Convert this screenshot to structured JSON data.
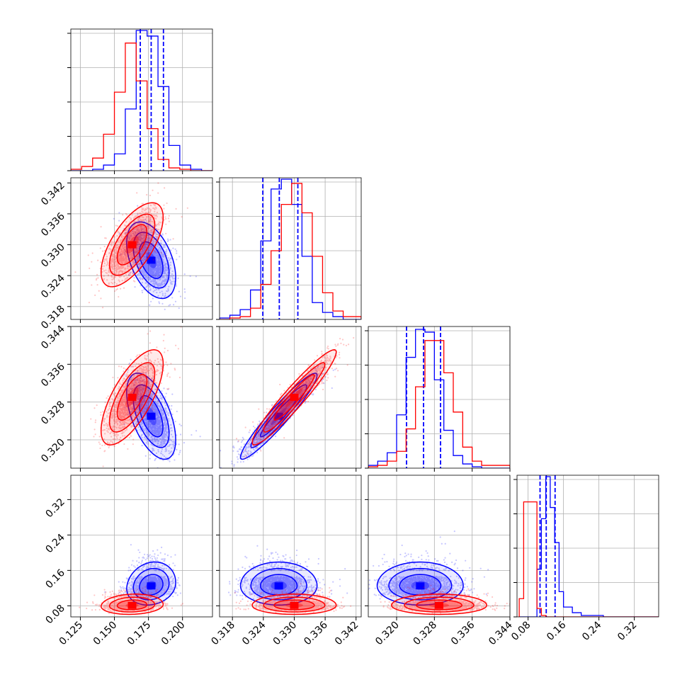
{
  "colors": {
    "series_a": "#0000ff",
    "series_b": "#ff0000",
    "grid": "#b0b0b0",
    "frame": "#000000"
  },
  "chart_data": {
    "type": "corner",
    "grid": true,
    "parameters": [
      {
        "range": [
          0.118,
          0.222
        ],
        "ticks": [
          0.125,
          0.15,
          0.175,
          0.2
        ],
        "tick_labels": [
          "0.125",
          "0.150",
          "0.175",
          "0.200"
        ]
      },
      {
        "range": [
          0.3155,
          0.343
        ],
        "ticks": [
          0.318,
          0.324,
          0.33,
          0.336,
          0.342
        ],
        "tick_labels": [
          "0.318",
          "0.324",
          "0.330",
          "0.336",
          "0.342"
        ]
      },
      {
        "range": [
          0.314,
          0.344
        ],
        "ticks": [
          0.32,
          0.328,
          0.336,
          0.344
        ],
        "tick_labels": [
          "0.320",
          "0.328",
          "0.336",
          "0.344"
        ]
      },
      {
        "range": [
          0.055,
          0.375
        ],
        "ticks": [
          0.08,
          0.16,
          0.24,
          0.32
        ],
        "tick_labels": [
          "0.08",
          "0.16",
          "0.24",
          "0.32"
        ]
      }
    ],
    "series": [
      {
        "key": "blue",
        "color": "#0000ff",
        "means": [
          0.177,
          0.327,
          0.325,
          0.125
        ],
        "sigmas": [
          0.0075,
          0.0031,
          0.0038,
          0.018
        ],
        "quantiles": [
          [
            0.169,
            0.177,
            0.186
          ],
          [
            0.3239,
            0.3271,
            0.3307
          ],
          [
            0.3221,
            0.3257,
            0.3293
          ],
          [
            0.107,
            0.121,
            0.141
          ]
        ],
        "hist_edges": [
          [
            0.118,
            0.126,
            0.134,
            0.142,
            0.15,
            0.158,
            0.166,
            0.174,
            0.182,
            0.19,
            0.198,
            0.206,
            0.214,
            0.222
          ],
          [
            0.3155,
            0.3175,
            0.3195,
            0.3215,
            0.3235,
            0.3255,
            0.3275,
            0.3295,
            0.3315,
            0.3335,
            0.3355,
            0.3375,
            0.3395,
            0.343
          ],
          [
            0.314,
            0.316,
            0.318,
            0.32,
            0.322,
            0.324,
            0.326,
            0.328,
            0.33,
            0.332,
            0.334,
            0.336,
            0.338,
            0.344
          ],
          [
            0.06,
            0.08,
            0.09,
            0.1,
            0.11,
            0.12,
            0.13,
            0.14,
            0.15,
            0.16,
            0.18,
            0.2,
            0.25,
            0.375
          ]
        ],
        "hist_heights": [
          [
            0.0,
            0.0,
            0.01,
            0.04,
            0.12,
            0.44,
            1.0,
            0.96,
            0.6,
            0.18,
            0.04,
            0.01,
            0.0
          ],
          [
            0.01,
            0.03,
            0.07,
            0.21,
            0.56,
            0.93,
            1.0,
            0.82,
            0.45,
            0.12,
            0.05,
            0.02,
            0.0
          ],
          [
            0.02,
            0.05,
            0.11,
            0.38,
            0.79,
            0.99,
            0.97,
            0.63,
            0.27,
            0.09,
            0.03,
            0.01,
            0.0
          ],
          [
            0.0,
            0.0,
            0.0,
            0.34,
            0.7,
            1.0,
            0.78,
            0.53,
            0.18,
            0.07,
            0.03,
            0.01,
            0.0
          ]
        ]
      },
      {
        "key": "red",
        "color": "#ff0000",
        "means": [
          0.163,
          0.33,
          0.329,
          0.081
        ],
        "sigmas": [
          0.0095,
          0.0034,
          0.0042,
          0.0085
        ],
        "quantiles": null,
        "hist_edges": [
          [
            0.118,
            0.126,
            0.134,
            0.142,
            0.15,
            0.158,
            0.166,
            0.174,
            0.182,
            0.19,
            0.198,
            0.206,
            0.214,
            0.222
          ],
          [
            0.3155,
            0.3175,
            0.3195,
            0.3215,
            0.3235,
            0.3255,
            0.3275,
            0.3295,
            0.3315,
            0.3335,
            0.3355,
            0.3375,
            0.3395,
            0.343
          ],
          [
            0.314,
            0.316,
            0.318,
            0.32,
            0.322,
            0.324,
            0.326,
            0.328,
            0.33,
            0.332,
            0.334,
            0.336,
            0.338,
            0.344
          ],
          [
            0.06,
            0.07,
            0.085,
            0.1,
            0.11,
            0.12,
            0.14,
            0.375
          ]
        ],
        "hist_heights": [
          [
            0.01,
            0.03,
            0.09,
            0.26,
            0.56,
            0.91,
            0.64,
            0.3,
            0.08,
            0.02,
            0.01,
            0.0,
            0.0
          ],
          [
            0.0,
            0.01,
            0.02,
            0.08,
            0.25,
            0.49,
            0.82,
            0.97,
            0.76,
            0.45,
            0.19,
            0.06,
            0.02
          ],
          [
            0.01,
            0.02,
            0.05,
            0.12,
            0.28,
            0.58,
            0.91,
            0.91,
            0.68,
            0.4,
            0.15,
            0.05,
            0.02
          ],
          [
            0.13,
            0.82,
            0.82,
            0.06,
            0.01,
            0.0,
            0.0
          ]
        ]
      }
    ]
  }
}
